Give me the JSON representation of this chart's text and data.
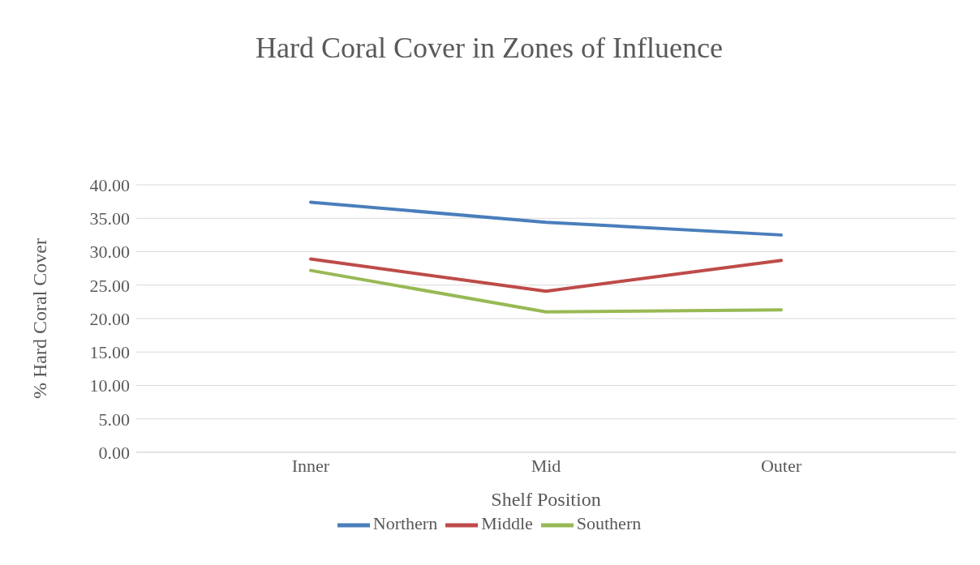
{
  "chart_data": {
    "type": "line",
    "title": "Hard Coral Cover in Zones of Influence",
    "xlabel": "Shelf Position",
    "ylabel": "% Hard Coral Cover",
    "categories": [
      "Inner",
      "Mid",
      "Outer"
    ],
    "series": [
      {
        "name": "Northern",
        "color": "#4a7ebb",
        "values": [
          37.4,
          34.4,
          32.5
        ]
      },
      {
        "name": "Middle",
        "color": "#be4b48",
        "values": [
          28.9,
          24.1,
          28.7
        ]
      },
      {
        "name": "Southern",
        "color": "#98b954",
        "values": [
          27.2,
          21.0,
          21.3
        ]
      }
    ],
    "ylim": [
      0,
      40
    ],
    "yticks": [
      {
        "value": 0,
        "label": "0.00"
      },
      {
        "value": 5,
        "label": "5.00"
      },
      {
        "value": 10,
        "label": "10.00"
      },
      {
        "value": 15,
        "label": "15.00"
      },
      {
        "value": 20,
        "label": "20.00"
      },
      {
        "value": 25,
        "label": "25.00"
      },
      {
        "value": 30,
        "label": "30.00"
      },
      {
        "value": 35,
        "label": "35.00"
      },
      {
        "value": 40,
        "label": "40.00"
      }
    ],
    "grid": "y",
    "legend": "bottom",
    "marker": "none",
    "line_style": "solid"
  }
}
